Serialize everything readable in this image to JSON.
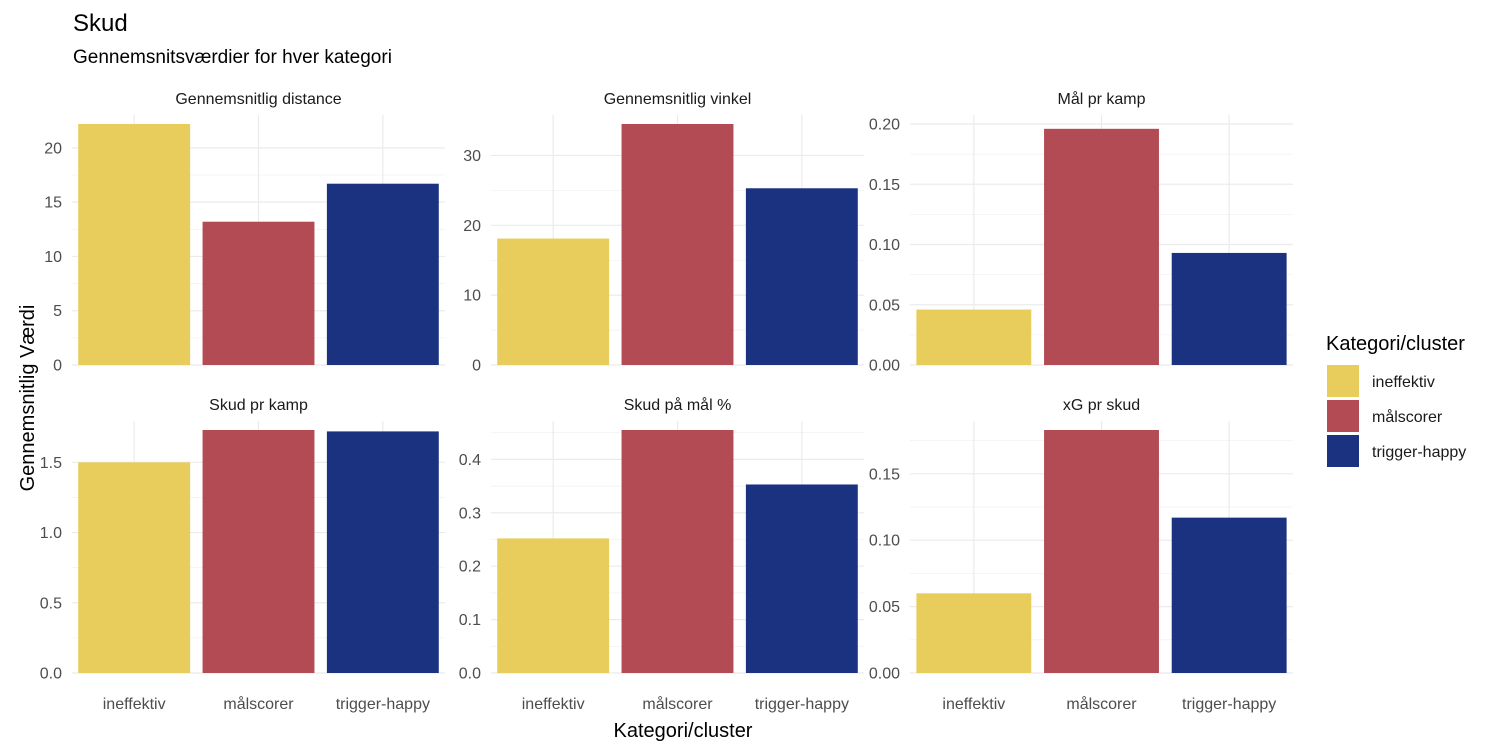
{
  "chart_data": {
    "type": "bar",
    "title": "Skud",
    "subtitle": "Gennemsnitsværdier for hver kategori",
    "xlabel": "Kategori/cluster",
    "ylabel": "Gennemsnitlig Værdi",
    "categories": [
      "ineffektiv",
      "målscorer",
      "trigger-happy"
    ],
    "legend": {
      "title": "Kategori/cluster",
      "position": "right",
      "items": [
        {
          "label": "ineffektiv",
          "color": "#E8CC5C"
        },
        {
          "label": "målscorer",
          "color": "#B34B55"
        },
        {
          "label": "trigger-happy",
          "color": "#1B3281"
        }
      ]
    },
    "grid": true,
    "panels": [
      {
        "name": "Gennemsnitlig distance",
        "values": [
          22.2,
          13.2,
          16.7
        ],
        "ylim": [
          0,
          22.2
        ],
        "yticks": [
          0,
          5,
          10,
          15,
          20
        ],
        "tick_labels": [
          "0",
          "5",
          "10",
          "15",
          "20"
        ]
      },
      {
        "name": "Gennemsnitlig vinkel",
        "values": [
          18.1,
          34.5,
          25.3
        ],
        "ylim": [
          0,
          34.5
        ],
        "yticks": [
          0,
          10,
          20,
          30
        ],
        "tick_labels": [
          "0",
          "10",
          "20",
          "30"
        ]
      },
      {
        "name": "Mål pr kamp",
        "values": [
          0.046,
          0.196,
          0.093
        ],
        "ylim": [
          0,
          0.2
        ],
        "yticks": [
          0,
          0.05,
          0.1,
          0.15,
          0.2
        ],
        "tick_labels": [
          "0.00",
          "0.05",
          "0.10",
          "0.15",
          "0.20"
        ]
      },
      {
        "name": "Skud pr kamp",
        "values": [
          1.5,
          1.73,
          1.72
        ],
        "ylim": [
          0,
          1.73
        ],
        "yticks": [
          0,
          0.5,
          1,
          1.5
        ],
        "tick_labels": [
          "0.0",
          "0.5",
          "1.0",
          "1.5"
        ]
      },
      {
        "name": "Skud på mål %",
        "values": [
          0.252,
          0.455,
          0.353
        ],
        "ylim": [
          0,
          0.455
        ],
        "yticks": [
          0,
          0.1,
          0.2,
          0.3,
          0.4
        ],
        "tick_labels": [
          "0.0",
          "0.1",
          "0.2",
          "0.3",
          "0.4"
        ]
      },
      {
        "name": "xG pr skud",
        "values": [
          0.06,
          0.183,
          0.117
        ],
        "ylim": [
          0,
          0.183
        ],
        "yticks": [
          0,
          0.05,
          0.1,
          0.15
        ],
        "tick_labels": [
          "0.00",
          "0.05",
          "0.10",
          "0.15"
        ]
      }
    ]
  }
}
